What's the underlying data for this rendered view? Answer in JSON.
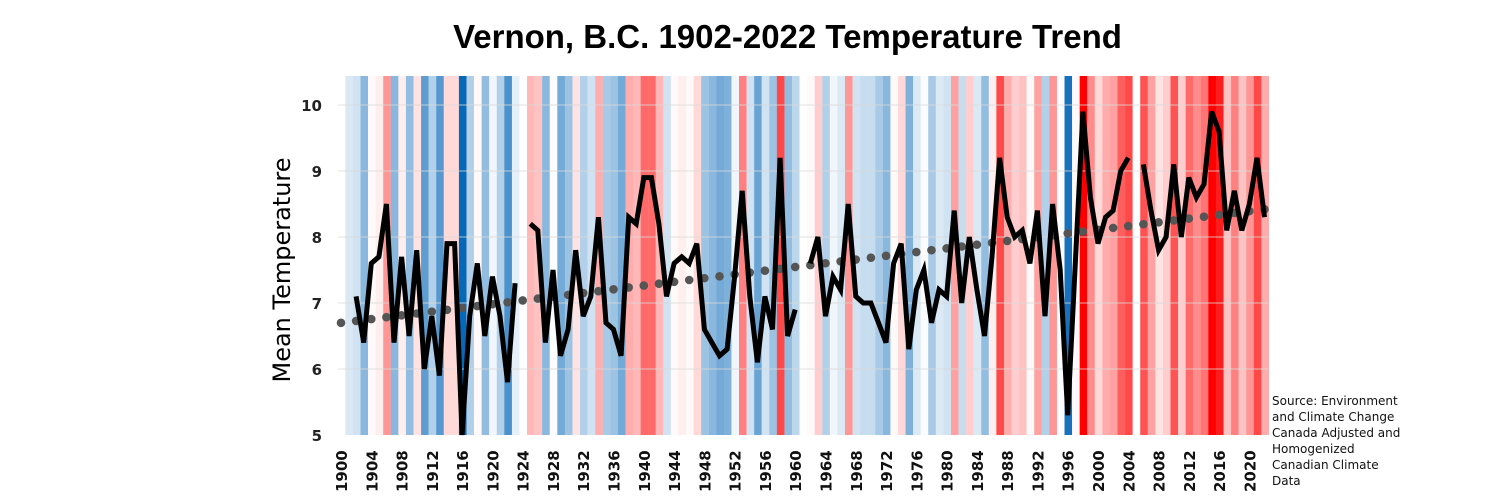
{
  "chart_data": {
    "type": "line",
    "title": "Vernon, B.C. 1902-2022 Temperature Trend",
    "xlabel": "",
    "ylabel": "Mean Temperature",
    "xlim": [
      1900,
      2022
    ],
    "ylim": [
      5,
      10
    ],
    "yticks": [
      5,
      6,
      7,
      8,
      9,
      10
    ],
    "xticks": [
      1900,
      1904,
      1908,
      1912,
      1916,
      1920,
      1924,
      1928,
      1932,
      1936,
      1940,
      1944,
      1948,
      1952,
      1956,
      1960,
      1964,
      1968,
      1972,
      1976,
      1980,
      1984,
      1988,
      1992,
      1996,
      2000,
      2004,
      2008,
      2012,
      2016,
      2020
    ],
    "grid": true,
    "background": "warming stripes (blue = cooler year, red = warmer year)",
    "series": [
      {
        "name": "Mean Temperature",
        "color": "#000000",
        "start_year": 1902,
        "values": [
          7.1,
          6.4,
          7.6,
          7.7,
          8.5,
          6.4,
          7.7,
          6.5,
          7.8,
          6.0,
          6.8,
          5.9,
          7.9,
          7.9,
          5.0,
          6.8,
          7.6,
          6.5,
          7.4,
          6.8,
          5.8,
          7.3,
          null,
          8.2,
          8.1,
          6.4,
          7.5,
          6.2,
          6.6,
          7.8,
          6.8,
          7.1,
          8.3,
          6.7,
          6.6,
          6.2,
          8.3,
          8.2,
          8.9,
          8.9,
          8.2,
          7.1,
          7.6,
          7.7,
          7.6,
          7.9,
          6.6,
          6.4,
          6.2,
          6.3,
          7.4,
          8.7,
          7.1,
          6.1,
          7.1,
          6.6,
          9.2,
          6.5,
          6.9,
          null,
          7.6,
          8.0,
          6.8,
          7.4,
          7.2,
          8.5,
          7.1,
          7.0,
          7.0,
          6.7,
          6.4,
          7.6,
          7.9,
          6.3,
          7.2,
          7.5,
          6.7,
          7.2,
          7.1,
          8.4,
          7.0,
          8.0,
          7.2,
          6.5,
          7.7,
          9.2,
          8.3,
          8.0,
          8.1,
          7.6,
          8.4,
          6.8,
          8.5,
          7.5,
          5.3,
          7.6,
          9.9,
          8.6,
          7.9,
          8.3,
          8.4,
          9.0,
          9.2,
          null,
          9.1,
          8.4,
          7.8,
          8.0,
          9.1,
          8.0,
          8.9,
          8.6,
          8.8,
          9.9,
          9.6,
          8.1,
          8.7,
          8.1,
          8.5,
          9.2,
          8.3
        ]
      },
      {
        "name": "Linear trend",
        "style": "dotted",
        "color": "#555555",
        "x": [
          1900,
          2022
        ],
        "values": [
          6.7,
          8.42
        ]
      }
    ],
    "stripe_colors": {
      "cold": "#0868b8",
      "neutral": "#ffffff",
      "warm": "#ff0000"
    }
  },
  "source_note": "Source: Environment and Climate Change Canada Adjusted and Homogenized Canadian Climate Data"
}
